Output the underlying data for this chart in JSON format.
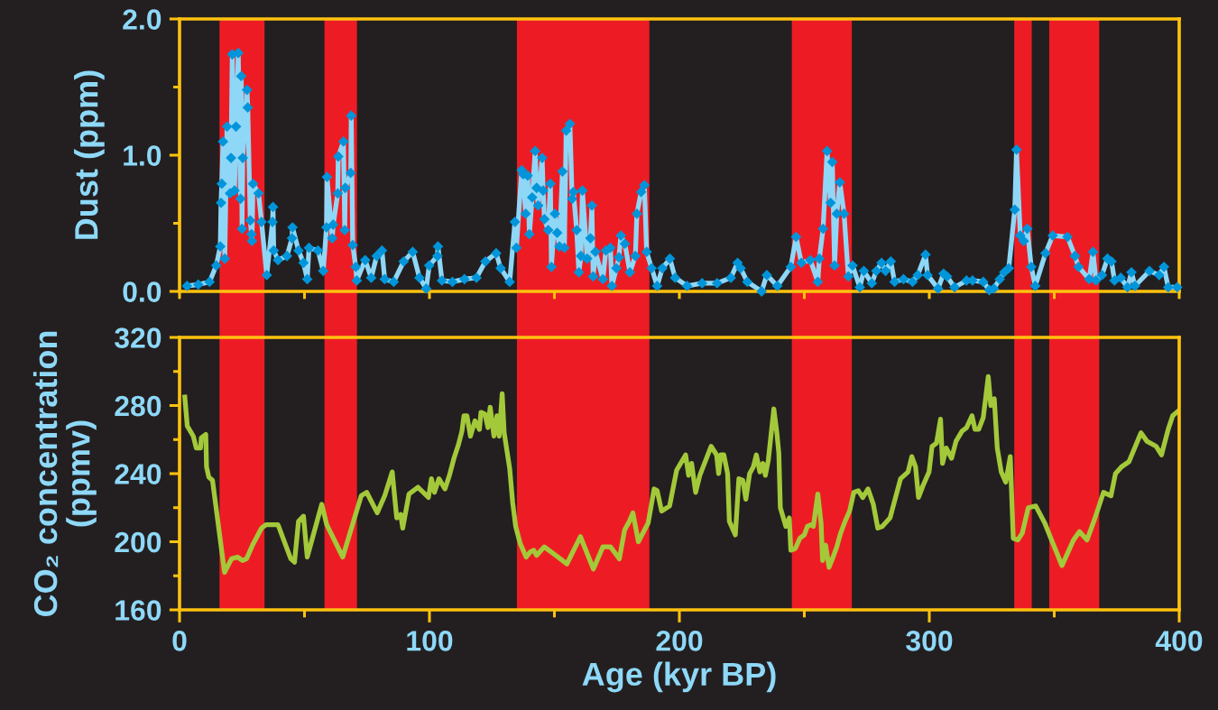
{
  "chart_data": [
    {
      "type": "line",
      "ylabel": "Dust (ppm)",
      "marker": "diamond",
      "tick_labels": "y",
      "xlim": [
        0,
        400
      ],
      "xticks": [
        0,
        {
          "value": 50,
          "label": null
        },
        100,
        {
          "value": 150,
          "label": null
        },
        200,
        {
          "value": 250,
          "label": null
        },
        300,
        {
          "value": 350,
          "label": null
        },
        400
      ],
      "ylim": [
        0,
        2
      ],
      "yticks": [
        {
          "value": 0,
          "label": "0.0"
        },
        {
          "value": 0.5,
          "label": null
        },
        {
          "value": 1,
          "label": "1.0"
        },
        {
          "value": 1.5,
          "label": null
        },
        {
          "value": 2,
          "label": "2.0"
        }
      ],
      "bands": [
        {
          "axis": "x",
          "from": 16,
          "to": 34,
          "color": "#ed1c24"
        },
        {
          "axis": "x",
          "from": 58,
          "to": 71,
          "color": "#ed1c24"
        },
        {
          "axis": "x",
          "from": 135,
          "to": 188,
          "color": "#ed1c24"
        },
        {
          "axis": "x",
          "from": 245,
          "to": 269,
          "color": "#ed1c24"
        },
        {
          "axis": "x",
          "from": 334,
          "to": 341,
          "color": "#ed1c24"
        },
        {
          "axis": "x",
          "from": 348,
          "to": 368,
          "color": "#ed1c24"
        }
      ],
      "x": [
        3,
        7.5,
        12,
        14.7,
        16.3,
        16.6,
        16.9,
        17.4,
        18.1,
        19.0,
        20.2,
        20.6,
        21.1,
        22.0,
        22.6,
        23.5,
        24.4,
        24.7,
        25.0,
        25.3,
        27.0,
        27.3,
        28.3,
        28.8,
        29.0,
        29.4,
        31.6,
        32.8,
        34.9,
        37.2,
        37.4,
        37.7,
        39.4,
        43.0,
        45.0,
        45.2,
        47.6,
        49.6,
        51.1,
        51.8,
        55.4,
        57.5,
        58.8,
        59.0,
        61.1,
        61.5,
        63.3,
        63.5,
        65.6,
        66.1,
        66.3,
        68.5,
        68.7,
        69.3,
        70.5,
        70.9,
        74.3,
        76.7,
        78.9,
        81.0,
        82.1,
        85.7,
        89.7,
        93.3,
        96.0,
        98.7,
        99.9,
        103.2,
        103.4,
        105.0,
        109.2,
        114,
        118.8,
        122.4,
        126.7,
        128.5,
        132.1,
        134.2,
        134.8,
        136.9,
        137.5,
        138.5,
        139.3,
        140.0,
        141.1,
        142.3,
        142.9,
        143.5,
        145.1,
        145.5,
        146.0,
        147.5,
        148.4,
        148.8,
        150.2,
        151.1,
        152.0,
        153.2,
        154.0,
        154.7,
        156.2,
        157.1,
        157.6,
        158.9,
        159.8,
        160.6,
        161.2,
        163.1,
        164.4,
        165.0,
        165.5,
        166.4,
        169.4,
        170.6,
        172.4,
        173.0,
        174.8,
        175.8,
        176.6,
        178.2,
        180.2,
        182.4,
        183.0,
        184.7,
        186.0,
        186.9,
        188.9,
        191.1,
        193.2,
        196.2,
        198.3,
        203.1,
        209.1,
        215.1,
        220.6,
        223.3,
        224.5,
        227.2,
        232.9,
        235.0,
        239.2,
        244.6,
        246.7,
        248.8,
        252.4,
        255.4,
        256.0,
        257.5,
        259.1,
        260.5,
        261.2,
        262.1,
        263.0,
        264.2,
        265.9,
        267.6,
        269.3,
        272.2,
        273.8,
        277.0,
        278.8,
        280.9,
        282.5,
        284.6,
        286.1,
        289.7,
        293.3,
        295.4,
        298.5,
        299.3,
        303.5,
        305.7,
        307.1,
        310.1,
        314.9,
        317.3,
        321.6,
        324.0,
        325.8,
        328.2,
        330.0,
        331.8,
        334.2,
        334.9,
        336.4,
        337.8,
        339.2,
        340.8,
        342.4,
        346.5,
        349.4,
        355.3,
        358.3,
        359.7,
        364.0,
        365.5,
        366.7,
        369.1,
        371.3,
        372.9,
        374.1,
        376.6,
        379.3,
        380.9,
        382.3,
        388.1,
        392.0,
        393.9,
        395.6,
        399.2
      ],
      "series": [
        {
          "color": "#8fd7f7",
          "colors": [
            "#0095da",
            "#0095da",
            "#0095da",
            "#0095da",
            "#0095da",
            "#0095da",
            "#0095da",
            "#0095da",
            "#0095da",
            "#0095da",
            "#0095da",
            "#0095da",
            "#0095da",
            "#0095da",
            "#0095da",
            "#0095da",
            "#0095da",
            "#0095da",
            "#0095da",
            "#0095da",
            "#0095da",
            "#0095da",
            "#0095da",
            "#0095da",
            "#0095da",
            "#0095da",
            "#0095da",
            "#0095da",
            "#0095da",
            "#0095da",
            "#0095da",
            "#0095da",
            "#0095da",
            "#0095da",
            "#0095da",
            "#0095da",
            "#0095da",
            "#0095da",
            "#0095da",
            "#0095da",
            "#0095da",
            "#0095da",
            "#0095da",
            "#0095da",
            "#0095da",
            "#0095da",
            "#0095da",
            "#0095da",
            "#0095da",
            "#0095da",
            "#0095da",
            "#0095da",
            "#0095da",
            "#0095da",
            "#0095da",
            "#0095da",
            "#0095da",
            "#0095da",
            "#0095da",
            "#0095da",
            "#0095da",
            "#0095da",
            "#0095da",
            "#0095da",
            "#0095da",
            "#0095da",
            "#0095da",
            "#0095da",
            "#0095da",
            "#0095da",
            "#0095da",
            "#0095da",
            "#0095da",
            "#0095da",
            "#0095da",
            "#0095da",
            "#0095da",
            "#0095da",
            "#0095da",
            "#0095da",
            "#0095da",
            "#0095da",
            "#0095da",
            "#0095da",
            "#0095da",
            "#0095da",
            "#0095da",
            "#0095da",
            "#0095da",
            "#0095da",
            "#0095da",
            "#0095da",
            "#0095da",
            "#0095da",
            "#0095da",
            "#0095da",
            "#0095da",
            "#0095da",
            "#0095da",
            "#0095da",
            "#0095da",
            "#0095da",
            "#0095da",
            "#0095da",
            "#0095da",
            "#0095da",
            "#0095da",
            "#0095da",
            "#0095da",
            "#0095da",
            "#0095da",
            "#0095da",
            "#0095da",
            "#0095da",
            "#0095da",
            "#0095da",
            "#0095da",
            "#0095da",
            "#0095da",
            "#0095da",
            "#0095da",
            "#0095da",
            "#0095da",
            "#0095da",
            "#0095da",
            "#0095da",
            "#0095da",
            "#0095da",
            "#0095da",
            "#0095da",
            "#0095da",
            "#0095da",
            "#0095da",
            "#0095da",
            "#0095da",
            "#0095da",
            "#0095da",
            "#0095da",
            "#0095da",
            "#0095da",
            "#0095da",
            "#0095da",
            "#0095da",
            "#0095da",
            "#0095da",
            "#0095da",
            "#0095da",
            "#0095da",
            "#0095da",
            "#0095da",
            "#0095da",
            "#0095da",
            "#0095da",
            "#0095da",
            "#0095da",
            "#0095da",
            "#0095da",
            "#0095da",
            "#0095da",
            "#0095da",
            "#0095da",
            "#0095da",
            "#0095da",
            "#0095da",
            "#0095da",
            "#0095da",
            "#0095da",
            "#0095da",
            "#0095da",
            "#0095da",
            "#0095da",
            "#0095da",
            "#0095da",
            "#0095da",
            "#0095da",
            "#0095da",
            "#0095da",
            "#0095da",
            "#0095da",
            "#0095da",
            "#0095da",
            "#0095da",
            "#0095da",
            "#0095da",
            "#0095da",
            "#0095da",
            "#0095da",
            "#0095da",
            "#0095da",
            "#0095da",
            "#0095da",
            "#0095da",
            "#0095da",
            "#0095da",
            "#0095da",
            "#0095da",
            "#0095da",
            "#0095da",
            "#0095da",
            "#0095da",
            "#0095da",
            "#0095da",
            "#0095da",
            "#0095da",
            "#0095da",
            "#0095da",
            "#0095da",
            "#0095da",
            "#0095da",
            "#0095da"
          ],
          "values": [
            0.04,
            0.05,
            0.07,
            0.19,
            0.33,
            0.65,
            0.79,
            1.1,
            0.24,
            1.21,
            0.72,
            0.98,
            1.74,
            0.74,
            1.21,
            1.75,
            0.68,
            1.58,
            0.46,
            0.98,
            1.48,
            1.35,
            0.52,
            0.42,
            0.37,
            0.79,
            0.72,
            0.51,
            0.12,
            0.51,
            0.62,
            0.3,
            0.23,
            0.26,
            0.39,
            0.47,
            0.3,
            0.21,
            0.09,
            0.32,
            0.3,
            0.15,
            0.47,
            0.84,
            0.39,
            0.49,
            0.72,
            0.99,
            1.1,
            0.45,
            0.76,
            0.87,
            1.29,
            0.34,
            0.18,
            0.08,
            0.23,
            0.1,
            0.26,
            0.3,
            0.09,
            0.07,
            0.22,
            0.29,
            0.1,
            0.02,
            0.19,
            0.26,
            0.33,
            0.08,
            0.07,
            0.09,
            0.1,
            0.22,
            0.28,
            0.17,
            0.07,
            0.51,
            0.32,
            0.89,
            0.86,
            0.57,
            0.85,
            0.42,
            0.69,
            1.03,
            0.76,
            0.63,
            0.98,
            0.74,
            0.53,
            0.45,
            0.79,
            0.18,
            0.57,
            0.43,
            0.33,
            0.88,
            0.32,
            1.18,
            1.23,
            0.68,
            0.73,
            0.45,
            0.14,
            0.26,
            0.74,
            0.24,
            0.39,
            0.63,
            0.11,
            0.29,
            0.09,
            0.3,
            0.32,
            0.04,
            0.17,
            0.25,
            0.41,
            0.35,
            0.14,
            0.26,
            0.57,
            0.73,
            0.78,
            0.29,
            0.17,
            0.04,
            0.17,
            0.24,
            0.1,
            0.04,
            0.06,
            0.06,
            0.1,
            0.21,
            0.17,
            0.07,
            0.0,
            0.12,
            0.04,
            0.18,
            0.4,
            0.21,
            0.23,
            0.07,
            0.24,
            0.46,
            1.03,
            0.65,
            0.95,
            0.19,
            0.57,
            0.8,
            0.57,
            0.11,
            0.19,
            0.03,
            0.15,
            0.06,
            0.15,
            0.21,
            0.15,
            0.22,
            0.07,
            0.09,
            0.07,
            0.12,
            0.27,
            0.12,
            0.02,
            0.13,
            0.11,
            0.03,
            0.08,
            0.08,
            0.07,
            0.01,
            0.02,
            0.09,
            0.14,
            0.17,
            0.6,
            1.04,
            0.41,
            0.37,
            0.46,
            0.18,
            0.04,
            0.28,
            0.41,
            0.4,
            0.26,
            0.18,
            0.09,
            0.29,
            0.08,
            0.12,
            0.24,
            0.22,
            0.08,
            0.1,
            0.03,
            0.14,
            0.04,
            0.15,
            0.12,
            0.18,
            0.03,
            0.03
          ]
        }
      ]
    },
    {
      "type": "line",
      "xlabel": "Age (kyr BP)",
      "ylabel": "CO₂ concentration\n(ppmv)",
      "xlim": [
        0,
        400
      ],
      "xticks": [
        0,
        {
          "value": 50,
          "label": null
        },
        100,
        {
          "value": 150,
          "label": null
        },
        200,
        {
          "value": 250,
          "label": null
        },
        300,
        {
          "value": 350,
          "label": null
        },
        400
      ],
      "ylim": [
        160,
        320
      ],
      "yticks": [
        160,
        {
          "value": 180,
          "label": null
        },
        200,
        {
          "value": 220,
          "label": null
        },
        240,
        {
          "value": 260,
          "label": null
        },
        280,
        {
          "value": 300,
          "label": null
        },
        320
      ],
      "bands": [
        {
          "axis": "x",
          "from": 16,
          "to": 34,
          "color": "#ed1c24"
        },
        {
          "axis": "x",
          "from": 58,
          "to": 71,
          "color": "#ed1c24"
        },
        {
          "axis": "x",
          "from": 135,
          "to": 188,
          "color": "#ed1c24"
        },
        {
          "axis": "x",
          "from": 245,
          "to": 269,
          "color": "#ed1c24"
        },
        {
          "axis": "x",
          "from": 334,
          "to": 341,
          "color": "#ed1c24"
        },
        {
          "axis": "x",
          "from": 348,
          "to": 368,
          "color": "#ed1c24"
        }
      ],
      "x": [
        2.1,
        3.1,
        5.5,
        6.7,
        8.4,
        8.7,
        10.5,
        10.8,
        11.7,
        13.2,
        18.0,
        20.8,
        23.2,
        25.2,
        26.8,
        29.2,
        32.8,
        34.6,
        39.4,
        44.5,
        46.0,
        47.6,
        49.6,
        51.1,
        56.9,
        58.9,
        65.3,
        72.7,
        74.9,
        79.1,
        82.1,
        85.1,
        86.9,
        88.5,
        89.3,
        91.8,
        95.4,
        99.6,
        100.8,
        102.0,
        103.8,
        106.2,
        108.0,
        109.8,
        111.6,
        113.0,
        113.8,
        115.0,
        116.4,
        118.2,
        120.0,
        120.6,
        122.2,
        123.4,
        124.3,
        125.8,
        127.0,
        127.9,
        129.1,
        129.9,
        132.1,
        133.3,
        134.5,
        136.3,
        138.7,
        140.3,
        141.7,
        142.9,
        145.9,
        151.4,
        155.0,
        160.4,
        165.6,
        169.4,
        172.4,
        176.0,
        178.1,
        180.0,
        181.4,
        183.6,
        187.5,
        189.9,
        191.1,
        192.9,
        196.1,
        198.9,
        202.5,
        203.7,
        204.9,
        206.5,
        208.2,
        212.7,
        214.9,
        215.7,
        216.6,
        217.8,
        219.3,
        220.0,
        222.4,
        223.8,
        225.4,
        226.6,
        228.1,
        229.6,
        230.8,
        232.2,
        233.4,
        234.4,
        235.6,
        237.8,
        239.0,
        239.8,
        240.4,
        242.6,
        244.0,
        244.6,
        246.4,
        248.2,
        250.0,
        251.2,
        252.7,
        253.6,
        255.4,
        256.7,
        257.3,
        258.5,
        259.9,
        261.5,
        263.0,
        264.5,
        266.3,
        268.1,
        269.8,
        271.6,
        273.4,
        275.5,
        277.6,
        279.4,
        281.2,
        284.3,
        288.5,
        291.5,
        293.0,
        294.5,
        295.7,
        297.5,
        299.9,
        301.1,
        302.9,
        304.5,
        305.3,
        306.8,
        308.9,
        310.7,
        313.1,
        314.9,
        317.1,
        318.3,
        319.8,
        321.6,
        323.6,
        324.6,
        326.0,
        327.2,
        328.8,
        330.6,
        332.4,
        333.6,
        335.4,
        337.2,
        339.6,
        342.6,
        346.2,
        349.2,
        353.1,
        357.7,
        360.1,
        361.3,
        363.1,
        366.1,
        369.7,
        372.7,
        374.5,
        376.9,
        379.9,
        384.7,
        387.1,
        390.8,
        392.9,
        395.6,
        397.4,
        399.8
      ],
      "series": [
        {
          "color": "#a3c93a",
          "values": [
            285,
            268,
            262,
            255,
            255,
            261,
            263,
            244,
            238,
            236,
            182,
            190,
            191,
            189,
            190,
            198,
            208,
            210,
            210,
            190,
            188,
            212,
            215,
            191,
            222,
            210,
            191,
            227,
            229,
            217,
            227,
            241,
            214,
            216,
            208,
            228,
            232,
            226,
            237,
            229,
            237,
            231,
            239,
            249,
            257,
            265,
            274,
            274,
            262,
            271,
            266,
            276,
            275,
            267,
            279,
            262,
            274,
            262,
            287,
            264,
            243,
            223,
            209,
            199,
            191,
            194,
            195,
            192,
            197,
            191,
            187,
            203,
            184,
            197,
            197,
            190,
            207,
            212,
            217,
            200,
            211,
            231,
            230,
            218,
            221,
            242,
            251,
            239,
            246,
            229,
            239,
            256,
            251,
            240,
            251,
            251,
            240,
            212,
            204,
            237,
            236,
            225,
            240,
            244,
            251,
            241,
            246,
            239,
            248,
            278,
            264,
            252,
            220,
            209,
            214,
            195,
            196,
            202,
            204,
            209,
            210,
            209,
            228,
            211,
            189,
            198,
            185,
            191,
            197,
            205,
            212,
            218,
            229,
            230,
            226,
            231,
            222,
            208,
            209,
            214,
            237,
            241,
            250,
            244,
            226,
            233,
            241,
            256,
            258,
            272,
            246,
            255,
            249,
            259,
            265,
            267,
            274,
            266,
            266,
            273,
            297,
            280,
            284,
            255,
            241,
            235,
            250,
            202,
            201,
            205,
            220,
            221,
            211,
            200,
            186,
            201,
            206,
            204,
            201,
            213,
            229,
            227,
            240,
            244,
            247,
            264,
            259,
            256,
            251,
            266,
            274,
            277
          ]
        }
      ]
    }
  ]
}
